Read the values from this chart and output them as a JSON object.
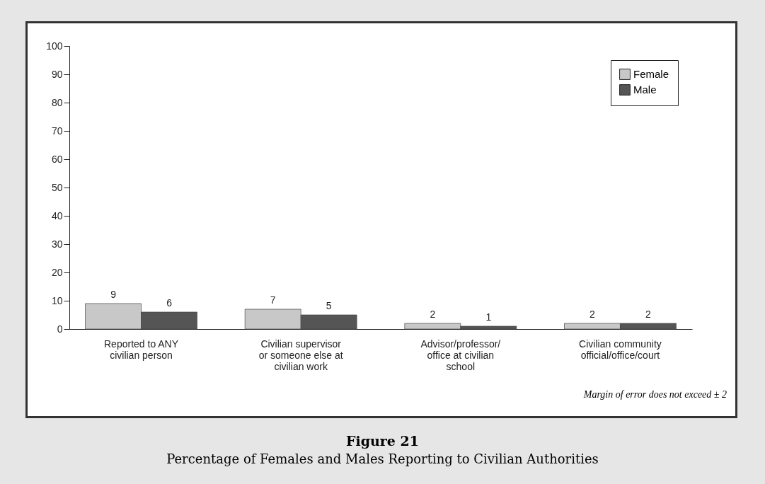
{
  "chart_data": {
    "type": "bar",
    "title": "Figure 21",
    "subtitle": "Percentage of Females and Males Reporting to Civilian Authorities",
    "categories": [
      "Reported to ANY civilian person",
      "Civilian supervisor or someone else at civilian work",
      "Advisor/professor/ office at civilian school",
      "Civilian community official/office/court"
    ],
    "series": [
      {
        "name": "Female",
        "color": "#c8c8c8",
        "values": [
          9,
          7,
          2,
          2
        ]
      },
      {
        "name": "Male",
        "color": "#555555",
        "values": [
          6,
          5,
          1,
          2
        ]
      }
    ],
    "ylim": [
      0,
      100
    ],
    "yticks": [
      0,
      10,
      20,
      30,
      40,
      50,
      60,
      70,
      80,
      90,
      100
    ],
    "data_labels": true,
    "legend": "top right",
    "grid": false,
    "annotations": [
      "Margin of error does not exceed ± 2"
    ]
  }
}
